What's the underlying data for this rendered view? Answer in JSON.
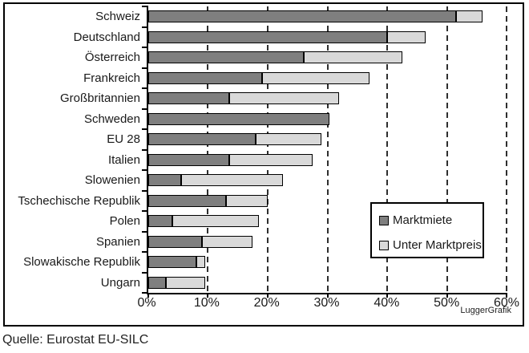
{
  "source": "Quelle: Eurostat EU-SILC",
  "chart_data": {
    "type": "bar",
    "orientation": "horizontal",
    "stacked": true,
    "title": "",
    "xlabel": "",
    "ylabel": "",
    "xlim": [
      0,
      60
    ],
    "x_ticks": [
      "0%",
      "10%",
      "20%",
      "30%",
      "40%",
      "50%",
      "60%"
    ],
    "grid": "dashed-vertical",
    "legend_position": "inside-right",
    "watermark": "LuggerGrafik",
    "categories": [
      "Schweiz",
      "Deutschland",
      "Österreich",
      "Frankreich",
      "Großbritannien",
      "Schweden",
      "EU 28",
      "Italien",
      "Slowenien",
      "Tschechische Republik",
      "Polen",
      "Spanien",
      "Slowakische Republik",
      "Ungarn"
    ],
    "series": [
      {
        "name": "Marktmiete",
        "color": "#7f7f7f",
        "values": [
          51.5,
          40,
          26,
          19,
          13.5,
          30.3,
          18,
          13.5,
          5.5,
          13,
          4,
          9,
          8,
          3
        ]
      },
      {
        "name": "Unter Marktpreis",
        "color": "#d9d9d9",
        "values": [
          4.5,
          6.5,
          16.5,
          18,
          18.5,
          0,
          11,
          14,
          17,
          7,
          14.5,
          8.5,
          1.5,
          6.5
        ]
      }
    ],
    "totals": [
      56,
      46.5,
      42.5,
      37,
      32,
      30.3,
      29,
      27.5,
      22.5,
      20,
      18.5,
      17.5,
      9.5,
      9.5
    ]
  }
}
